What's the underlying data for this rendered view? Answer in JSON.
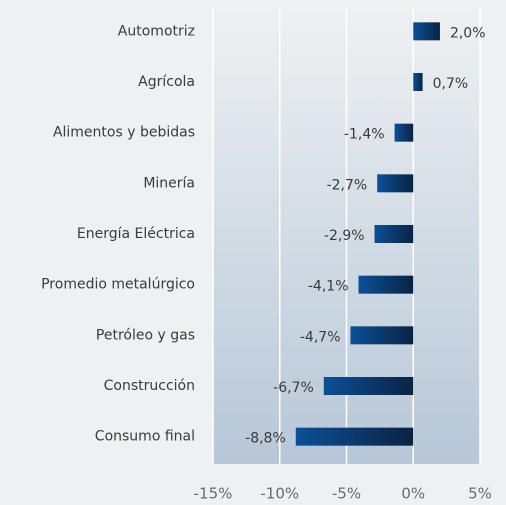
{
  "chart_data": {
    "type": "barh",
    "categories": [
      "Automotriz",
      "Agrícola",
      "Alimentos y bebidas",
      "Minería",
      "Energía Eléctrica",
      "Promedio metalúrgico",
      "Petróleo y gas",
      "Construcción",
      "Consumo final"
    ],
    "values": [
      2.0,
      0.7,
      -1.4,
      -2.7,
      -2.9,
      -4.1,
      -4.7,
      -6.7,
      -8.8
    ],
    "value_labels": [
      "2,0%",
      "0,7%",
      "-1,4%",
      "-2,7%",
      "-2,9%",
      "-4,1%",
      "-4,7%",
      "-6,7%",
      "-8,8%"
    ],
    "xlim": [
      -15,
      5
    ],
    "xticks": [
      {
        "value": -15,
        "label": "-15%"
      },
      {
        "value": -10,
        "label": "-10%"
      },
      {
        "value": -5,
        "label": "-5%"
      },
      {
        "value": 0,
        "label": "0%"
      },
      {
        "value": 5,
        "label": "5%"
      }
    ],
    "grid": true,
    "color": [
      "#0c4f97",
      "#0a2343"
    ]
  }
}
